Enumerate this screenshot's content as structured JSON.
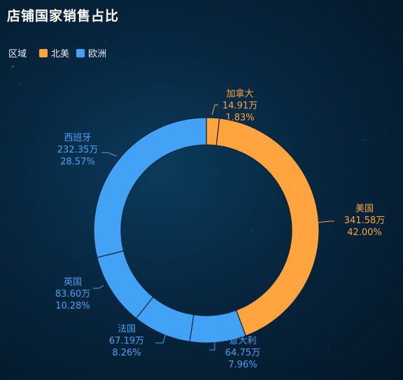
{
  "title": "店铺国家销售占比",
  "legend": {
    "title": "区域",
    "items": [
      {
        "label": "北美",
        "color": "#ffa43f"
      },
      {
        "label": "欧洲",
        "color": "#42a3f6"
      }
    ]
  },
  "chart_data": {
    "type": "pie",
    "donut": true,
    "title": "店铺国家销售占比",
    "legend_placement": "top-left",
    "slices": [
      {
        "name": "加拿大",
        "value_label": "14.91万",
        "percent_label": "1.83%",
        "value": 14.91,
        "percent": 1.83,
        "region": "北美"
      },
      {
        "name": "美国",
        "value_label": "341.58万",
        "percent_label": "42.00%",
        "value": 341.58,
        "percent": 42.0,
        "region": "北美"
      },
      {
        "name": "意大利",
        "value_label": "64.75万",
        "percent_label": "7.96%",
        "value": 64.75,
        "percent": 7.96,
        "region": "欧洲"
      },
      {
        "name": "法国",
        "value_label": "67.19万",
        "percent_label": "8.26%",
        "value": 67.19,
        "percent": 8.26,
        "region": "欧洲"
      },
      {
        "name": "英国",
        "value_label": "83.60万",
        "percent_label": "10.28%",
        "value": 83.6,
        "percent": 10.28,
        "region": "欧洲"
      },
      {
        "name": "西班牙",
        "value_label": "232.35万",
        "percent_label": "28.57%",
        "value": 232.35,
        "percent": 28.57,
        "region": "欧洲"
      }
    ]
  }
}
